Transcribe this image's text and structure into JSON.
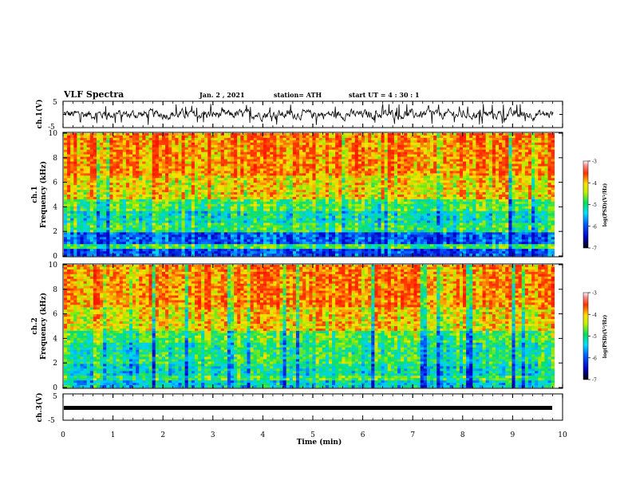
{
  "header": {
    "title": "VLF Spectra",
    "date": "Jan. 2 , 2021",
    "station": "station= ATH",
    "start": "start UT = 4 : 30 : 1"
  },
  "chart_data": [
    {
      "type": "line",
      "panel": "ch1-waveform",
      "ylabel": "ch.1(V)",
      "ylim": [
        -5,
        5
      ],
      "yticks": [
        "5",
        "-5"
      ],
      "xlim": [
        0,
        10
      ],
      "description_values": {
        "baseline": 0.0,
        "envelope": [
          -3,
          3
        ]
      }
    },
    {
      "type": "heatmap",
      "panel": "ch1-spectrogram",
      "ylabel_top": "ch.1",
      "ylabel": "Frequency (kHz)",
      "ylim": [
        0,
        10
      ],
      "yticks": [
        0,
        2,
        4,
        6,
        8,
        10
      ],
      "xlim": [
        0,
        10
      ],
      "colorbar": {
        "label": "log(PSD)(V²/Hz)",
        "range": [
          -7,
          -3
        ],
        "ticks": [
          -3,
          -4,
          -5,
          -6,
          -7
        ]
      }
    },
    {
      "type": "heatmap",
      "panel": "ch2-spectrogram",
      "ylabel_top": "ch.2",
      "ylabel": "Frequency (kHz)",
      "ylim": [
        0,
        10
      ],
      "yticks": [
        0,
        2,
        4,
        6,
        8,
        10
      ],
      "xlim": [
        0,
        10
      ],
      "colorbar": {
        "label": "log(PSD)(V²/Hz)",
        "range": [
          -7,
          -3
        ],
        "ticks": [
          -3,
          -4,
          -5,
          -6,
          -7
        ]
      }
    },
    {
      "type": "line",
      "panel": "ch3-waveform",
      "ylabel": "ch.3(V)",
      "ylim": [
        -5,
        5
      ],
      "yticks": [
        "5",
        "-5"
      ],
      "xlim": [
        0,
        10
      ],
      "xlabel": "Time (min)",
      "xticks": [
        0,
        1,
        2,
        3,
        4,
        5,
        6,
        7,
        8,
        9,
        10
      ],
      "description_values": {
        "baseline": -1.0
      }
    }
  ],
  "colors": {
    "spec_high": "#ff2a00",
    "spec_mid": "#ffe000",
    "spec_low": "#00e050",
    "spec_cyan": "#00d8ff",
    "spec_blue": "#0030ff"
  }
}
